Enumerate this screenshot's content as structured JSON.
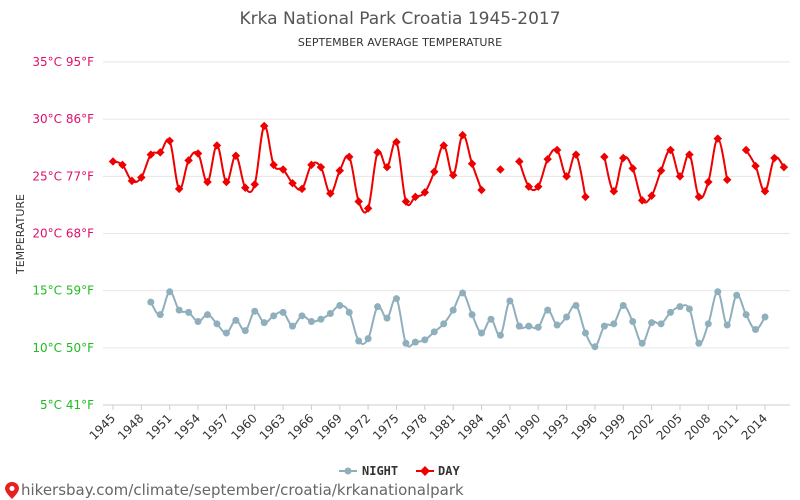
{
  "chart_data": {
    "type": "line",
    "title": "Krka National Park Croatia 1945-2017",
    "subtitle": "SEPTEMBER AVERAGE TEMPERATURE",
    "ylabel": "TEMPERATURE",
    "ylim": [
      5,
      35
    ],
    "xlim": [
      1945,
      2017
    ],
    "yticks": [
      {
        "value": 35,
        "label": "35°C 95°F"
      },
      {
        "value": 30,
        "label": "30°C 86°F"
      },
      {
        "value": 25,
        "label": "25°C 77°F"
      },
      {
        "value": 20,
        "label": "20°C 68°F"
      },
      {
        "value": 15,
        "label": "15°C 59°F"
      },
      {
        "value": 10,
        "label": "10°C 50°F"
      },
      {
        "value": 5,
        "label": "5°C 41°F"
      }
    ],
    "xticks": [
      1945,
      1948,
      1951,
      1954,
      1957,
      1960,
      1963,
      1966,
      1969,
      1972,
      1975,
      1978,
      1981,
      1984,
      1987,
      1990,
      1993,
      1996,
      1999,
      2002,
      2005,
      2008,
      2011,
      2014
    ],
    "grid": true,
    "legend_position": "bottom",
    "series": [
      {
        "name": "DAY",
        "color": "#ee0000",
        "x": [
          1945,
          1946,
          1947,
          1948,
          1949,
          1950,
          1951,
          1952,
          1953,
          1954,
          1955,
          1956,
          1957,
          1958,
          1959,
          1960,
          1961,
          1962,
          1963,
          1964,
          1965,
          1966,
          1967,
          1968,
          1969,
          1970,
          1971,
          1972,
          1973,
          1974,
          1975,
          1976,
          1977,
          1978,
          1979,
          1980,
          1981,
          1982,
          1983,
          1984,
          1985,
          1986,
          1987,
          1988,
          1989,
          1990,
          1991,
          1992,
          1993,
          1994,
          1995,
          1996,
          1997,
          1998,
          1999,
          2000,
          2001,
          2002,
          2003,
          2004,
          2005,
          2006,
          2007,
          2008,
          2009,
          2010,
          2011,
          2012,
          2013,
          2014,
          2015,
          2016,
          2017
        ],
        "values": [
          26.3,
          26.0,
          24.6,
          24.9,
          26.9,
          27.1,
          28.1,
          23.9,
          26.4,
          27.0,
          24.5,
          27.7,
          24.5,
          26.8,
          24.0,
          24.3,
          29.4,
          26.0,
          25.6,
          24.4,
          23.9,
          26.0,
          25.8,
          23.5,
          25.5,
          26.7,
          22.8,
          22.2,
          27.1,
          25.8,
          28.0,
          22.8,
          23.2,
          23.6,
          25.4,
          27.7,
          25.1,
          28.6,
          26.1,
          23.8,
          null,
          25.6,
          null,
          26.3,
          24.1,
          24.1,
          26.5,
          27.3,
          25.0,
          26.9,
          23.2,
          null,
          26.7,
          23.7,
          26.6,
          25.7,
          22.9,
          23.3,
          25.5,
          27.3,
          25.0,
          26.9,
          23.2,
          24.5,
          28.3,
          24.7,
          null,
          27.3,
          25.9,
          23.7,
          26.6,
          25.8,
          null
        ]
      },
      {
        "name": "NIGHT",
        "color": "#90afbd",
        "x": [
          1945,
          1946,
          1947,
          1948,
          1949,
          1950,
          1951,
          1952,
          1953,
          1954,
          1955,
          1956,
          1957,
          1958,
          1959,
          1960,
          1961,
          1962,
          1963,
          1964,
          1965,
          1966,
          1967,
          1968,
          1969,
          1970,
          1971,
          1972,
          1973,
          1974,
          1975,
          1976,
          1977,
          1978,
          1979,
          1980,
          1981,
          1982,
          1983,
          1984,
          1985,
          1986,
          1987,
          1988,
          1989,
          1990,
          1991,
          1992,
          1993,
          1994,
          1995,
          1996,
          1997,
          1998,
          1999,
          2000,
          2001,
          2002,
          2003,
          2004,
          2005,
          2006,
          2007,
          2008,
          2009,
          2010,
          2011,
          2012,
          2013,
          2014,
          2015,
          2016,
          2017
        ],
        "values": [
          null,
          null,
          null,
          null,
          14.0,
          12.9,
          14.9,
          13.3,
          13.1,
          12.3,
          12.9,
          12.1,
          11.3,
          12.4,
          11.5,
          13.2,
          12.2,
          12.8,
          13.1,
          11.9,
          12.8,
          12.3,
          12.5,
          13.0,
          13.7,
          13.1,
          10.6,
          10.8,
          13.6,
          12.6,
          14.3,
          10.4,
          10.5,
          10.7,
          11.4,
          12.1,
          13.3,
          14.8,
          12.9,
          11.3,
          12.5,
          11.1,
          14.1,
          11.9,
          11.9,
          11.8,
          13.3,
          12.0,
          12.7,
          13.7,
          11.3,
          10.1,
          11.9,
          12.1,
          13.7,
          12.3,
          10.4,
          12.2,
          12.1,
          13.1,
          13.6,
          13.4,
          10.4,
          12.1,
          14.9,
          12.0,
          14.6,
          12.9,
          11.6,
          12.7,
          null,
          null,
          null
        ]
      }
    ]
  },
  "footer": {
    "url": "hikersbay.com/climate/september/croatia/krkanationalpark"
  },
  "colors": {
    "ytick_warm": "#e0106a",
    "ytick_mild": "#22bb22",
    "grid": "#e6e6e6",
    "footer_pin": "#e52222"
  }
}
